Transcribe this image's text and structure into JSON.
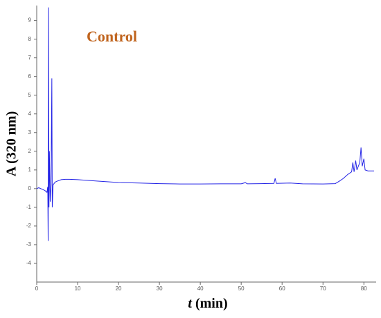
{
  "chart_data": {
    "type": "line",
    "title": "Control",
    "ylabel": "A (320 nm)",
    "xlabel": [
      "t",
      "(min)"
    ],
    "x": [
      0,
      0.5,
      1,
      1.5,
      2,
      2.5,
      2.7,
      2.8,
      2.9,
      3.0,
      3.1,
      3.3,
      3.5,
      3.7,
      3.8,
      4.0,
      4.5,
      5,
      6,
      7,
      8,
      10,
      12,
      15,
      20,
      25,
      30,
      35,
      40,
      45,
      50,
      51,
      51.5,
      55,
      58,
      58.3,
      58.6,
      62,
      65,
      70,
      73,
      74,
      75,
      76,
      77,
      77.3,
      77.6,
      78,
      78.3,
      79,
      79.3,
      79.6,
      80,
      80.3,
      81,
      82,
      82.5
    ],
    "series": [
      {
        "name": "A320",
        "color": "#2323e6",
        "values": [
          0,
          0.05,
          0,
          -0.05,
          -0.1,
          -0.2,
          0.1,
          -2.8,
          9.7,
          -1,
          2.0,
          -0.7,
          0.2,
          5.9,
          -1.0,
          0.2,
          0.35,
          0.4,
          0.48,
          0.5,
          0.5,
          0.48,
          0.45,
          0.4,
          0.33,
          0.3,
          0.27,
          0.25,
          0.25,
          0.26,
          0.26,
          0.32,
          0.26,
          0.27,
          0.28,
          0.55,
          0.28,
          0.3,
          0.26,
          0.25,
          0.27,
          0.4,
          0.55,
          0.75,
          0.9,
          1.4,
          0.9,
          1.5,
          1.0,
          1.4,
          2.2,
          1.2,
          1.6,
          1.0,
          0.95,
          0.95,
          0.95
        ]
      }
    ],
    "xlim": [
      0,
      83
    ],
    "xticks": [
      0,
      10,
      20,
      30,
      40,
      50,
      60,
      70,
      80
    ],
    "ylim": [
      -5,
      9.8
    ],
    "yticks": [
      -4,
      -3,
      -2,
      -1,
      0,
      1,
      2,
      3,
      4,
      5,
      6,
      7,
      8,
      9
    ]
  }
}
